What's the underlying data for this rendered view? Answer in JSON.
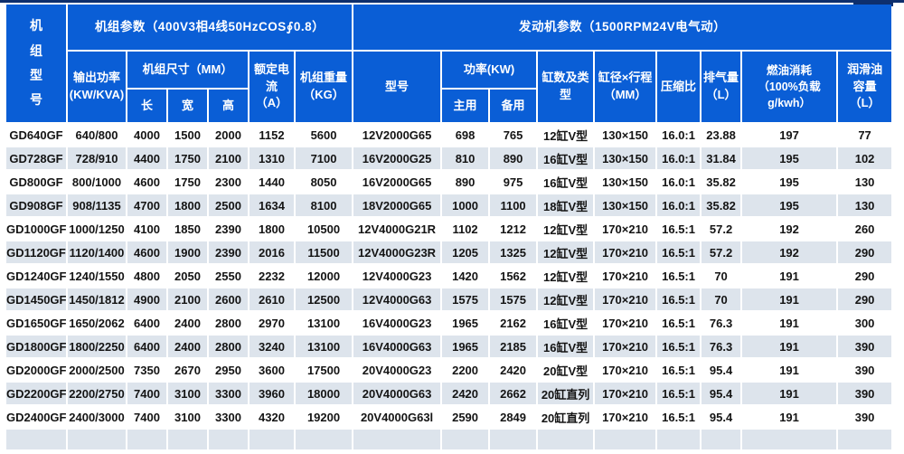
{
  "colors": {
    "header_blue": "#0a5ed6",
    "top_border_navy": "#0e2f6d",
    "row_stripe": "#dde4ec",
    "data_text": "#141414"
  },
  "table": {
    "unit_model_header": "机\n组\n型\n号",
    "group_unit_params": "机组参数（400V3相4线50HzCOS∮0.8）",
    "group_engine_params": "发动机参数（1500RPM24V电气动）",
    "headers": {
      "output_power": "输出功率\n(KW/KVA)",
      "dimensions": "机组尺寸（MM）",
      "length": "长",
      "width": "宽",
      "height": "高",
      "rated_current": "额定电流\n（A）",
      "unit_weight": "机组重量\n（KG）",
      "engine_model": "型号",
      "power_kw": "功率(KW)",
      "prime": "主用",
      "standby": "备用",
      "cylinders": "缸数及类型",
      "bore_stroke": "缸径×行程\n（MM）",
      "compression": "压缩比",
      "displacement": "排气量\n（L）",
      "fuel": "燃油消耗\n（100%负载g/kwh）",
      "oil": "润滑油\n容量\n（L）"
    },
    "rows": [
      [
        "GD640GF",
        "640/800",
        "4000",
        "1500",
        "2000",
        "1152",
        "5600",
        "12V2000G65",
        "698",
        "765",
        "12缸V型",
        "130×150",
        "16.0:1",
        "23.88",
        "197",
        "77"
      ],
      [
        "GD728GF",
        "728/910",
        "4400",
        "1750",
        "2100",
        "1310",
        "7100",
        "16V2000G25",
        "810",
        "890",
        "16缸V型",
        "130×150",
        "16.0:1",
        "31.84",
        "195",
        "102"
      ],
      [
        "GD800GF",
        "800/1000",
        "4600",
        "1750",
        "2300",
        "1440",
        "8050",
        "16V2000G65",
        "890",
        "975",
        "16缸V型",
        "130×150",
        "16.0:1",
        "35.82",
        "195",
        "130"
      ],
      [
        "GD908GF",
        "908/1135",
        "4700",
        "1800",
        "2500",
        "1634",
        "8100",
        "18V2000G65",
        "1000",
        "1100",
        "18缸V型",
        "130×150",
        "16.0:1",
        "35.82",
        "195",
        "130"
      ],
      [
        "GD1000GF",
        "1000/1250",
        "4100",
        "1850",
        "2390",
        "1800",
        "10500",
        "12V4000G21R",
        "1102",
        "1212",
        "12缸V型",
        "170×210",
        "16.5:1",
        "57.2",
        "192",
        "260"
      ],
      [
        "GD1120GF",
        "1120/1400",
        "4600",
        "1900",
        "2390",
        "2016",
        "11500",
        "12V4000G23R",
        "1205",
        "1325",
        "12缸V型",
        "170×210",
        "16.5:1",
        "57.2",
        "192",
        "290"
      ],
      [
        "GD1240GF",
        "1240/1550",
        "4800",
        "2050",
        "2550",
        "2232",
        "12000",
        "12V4000G23",
        "1420",
        "1562",
        "12缸V型",
        "170×210",
        "16.5:1",
        "70",
        "191",
        "290"
      ],
      [
        "GD1450GF",
        "1450/1812",
        "4900",
        "2100",
        "2600",
        "2610",
        "12500",
        "12V4000G63",
        "1575",
        "1575",
        "12缸V型",
        "170×210",
        "16.5:1",
        "70",
        "191",
        "290"
      ],
      [
        "GD1650GF",
        "1650/2062",
        "6400",
        "2400",
        "2800",
        "2970",
        "13100",
        "16V4000G23",
        "1965",
        "2162",
        "16缸V型",
        "170×210",
        "16.5:1",
        "76.3",
        "191",
        "300"
      ],
      [
        "GD1800GF",
        "1800/2250",
        "6400",
        "2400",
        "2800",
        "3240",
        "13100",
        "16V4000G63",
        "1965",
        "2185",
        "16缸V型",
        "170×210",
        "16.5:1",
        "76.3",
        "191",
        "390"
      ],
      [
        "GD2000GF",
        "2000/2500",
        "7350",
        "2670",
        "2950",
        "3600",
        "17500",
        "20V4000G23",
        "2200",
        "2420",
        "20缸V型",
        "170×210",
        "16.5:1",
        "95.4",
        "191",
        "390"
      ],
      [
        "GD2200GF",
        "2200/2750",
        "7400",
        "3100",
        "3300",
        "3960",
        "18000",
        "20V4000G63",
        "2420",
        "2662",
        "20缸直列",
        "170×210",
        "16.5:1",
        "95.4",
        "191",
        "390"
      ],
      [
        "GD2400GF",
        "2400/3000",
        "7400",
        "3100",
        "3300",
        "4320",
        "19200",
        "20V4000G63l",
        "2590",
        "2849",
        "20缸直列",
        "170×210",
        "16.5:1",
        "95.4",
        "191",
        "390"
      ]
    ]
  }
}
